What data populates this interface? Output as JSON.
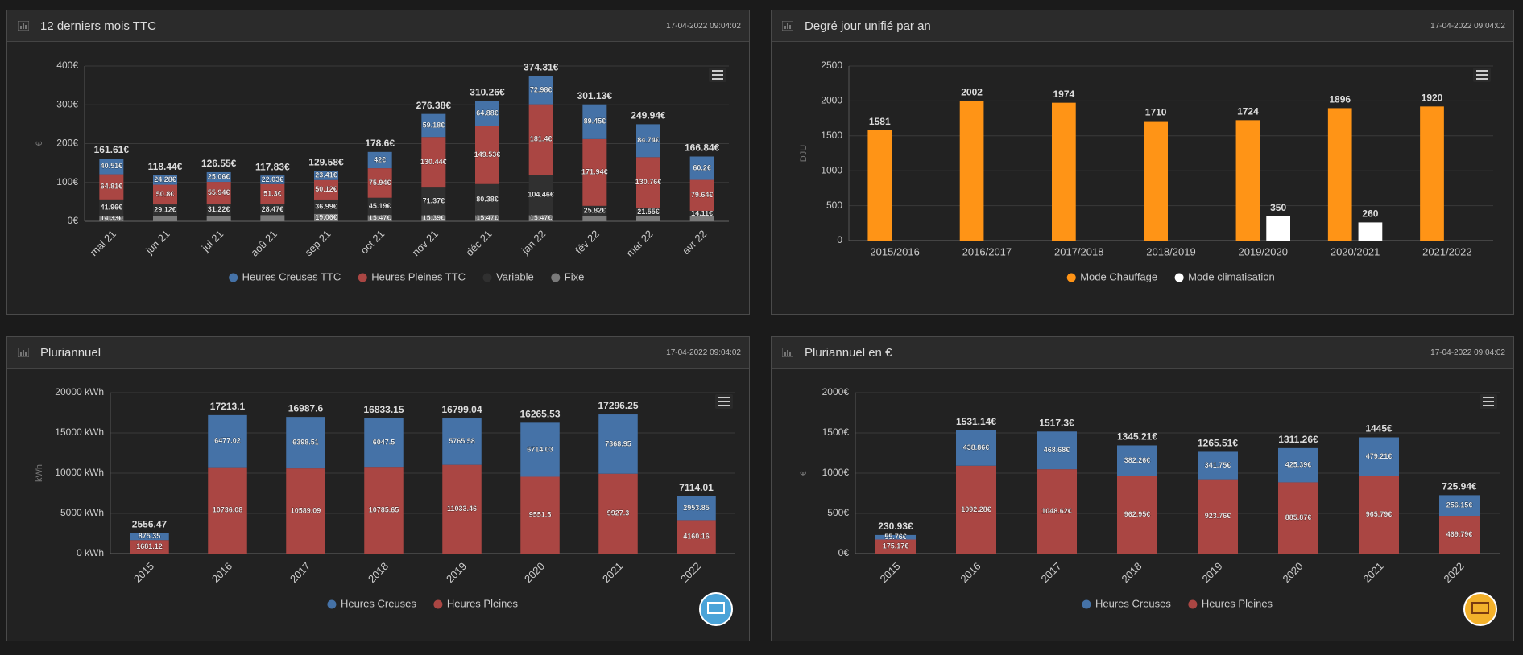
{
  "chart_data": [
    {
      "type": "stacked_bar",
      "title": "12 derniers mois TTC",
      "updated": "17-04-2022 09:04:02",
      "y_label": "€",
      "categories": [
        "mai 21",
        "jun 21",
        "jul 21",
        "aoû 21",
        "sep 21",
        "oct 21",
        "nov 21",
        "déc 21",
        "jan 22",
        "fév 22",
        "mar 22",
        "avr 22"
      ],
      "series": [
        {
          "name": "Heures Creuses TTC",
          "color": "#4572a7",
          "values": [
            40.51,
            24.28,
            25.06,
            22.03,
            23.41,
            42,
            59.18,
            64.88,
            72.98,
            89.45,
            84.74,
            60.2
          ],
          "value_labels": [
            "40.51€",
            "24.28€",
            "25.06€",
            "22.03€",
            "23.41€",
            "42€",
            "59.18€",
            "64.88€",
            "72.98€",
            "89.45€",
            "84.74€",
            "60.2€"
          ]
        },
        {
          "name": "Heures Pleines TTC",
          "color": "#aa4643",
          "values": [
            64.81,
            50.8,
            55.94,
            51.3,
            50.12,
            75.94,
            130.44,
            149.53,
            181.4,
            171.94,
            130.76,
            79.64
          ],
          "value_labels": [
            "64.81€",
            "50.8€",
            "55.94€",
            "51.3€",
            "50.12€",
            "75.94€",
            "130.44€",
            "149.53€",
            "181.4€",
            "171.94€",
            "130.76€",
            "79.64€"
          ]
        },
        {
          "name": "Variable",
          "color": "#303030",
          "values": [
            41.96,
            29.12,
            31.22,
            28.47,
            36.99,
            45.19,
            71.37,
            80.38,
            104.46,
            25.82,
            21.55,
            14.11
          ],
          "value_labels": [
            "41.96€",
            "29.12€",
            "31.22€",
            "28.47€",
            "36.99€",
            "45.19€",
            "71.37€",
            "80.38€",
            "104.46€",
            "25.82€",
            "21.55€",
            "14.11€"
          ]
        },
        {
          "name": "Fixe",
          "color": "#7a7a7a",
          "values": [
            14.33,
            14.24,
            14.33,
            16.03,
            19.06,
            15.47,
            15.39,
            15.47,
            15.47,
            13.92,
            12.89,
            12.89
          ],
          "value_labels": [
            "14.33€",
            null,
            null,
            null,
            "19.06€",
            "15.47€",
            "15.39€",
            "15.47€",
            "15.47€",
            null,
            null,
            null
          ]
        }
      ],
      "stack_labels": [
        "161.61€",
        "118.44€",
        "126.55€",
        "117.83€",
        "129.58€",
        "178.6€",
        "276.38€",
        "310.26€",
        "374.31€",
        "301.13€",
        "249.94€",
        "166.84€"
      ],
      "ylim": [
        0,
        400
      ],
      "yticks": [
        {
          "value": 0,
          "label": "0€"
        },
        {
          "value": 100,
          "label": "100€"
        },
        {
          "value": 200,
          "label": "200€"
        },
        {
          "value": 300,
          "label": "300€"
        },
        {
          "value": 400,
          "label": "400€"
        }
      ],
      "grid": true,
      "legend": "bottom"
    },
    {
      "type": "bar",
      "title": "Degré jour unifié par an",
      "updated": "17-04-2022 09:04:02",
      "y_label": "DJU",
      "categories": [
        "2015/2016",
        "2016/2017",
        "2017/2018",
        "2018/2019",
        "2019/2020",
        "2020/2021",
        "2021/2022"
      ],
      "series": [
        {
          "name": "Mode Chauffage",
          "color": "#ff9416",
          "values": [
            1581,
            2002,
            1974,
            1710,
            1724,
            1896,
            1920
          ]
        },
        {
          "name": "Mode climatisation",
          "color": "#ffffff",
          "values": [
            null,
            null,
            null,
            null,
            350,
            260,
            null
          ]
        }
      ],
      "ylim": [
        0,
        2500
      ],
      "yticks": [
        0,
        500,
        1000,
        1500,
        2000,
        2500
      ],
      "grid": true,
      "legend": "bottom"
    },
    {
      "type": "stacked_bar",
      "title": "Pluriannuel",
      "updated": "17-04-2022 09:04:02",
      "y_label": "kWh",
      "categories": [
        "2015",
        "2016",
        "2017",
        "2018",
        "2019",
        "2020",
        "2021",
        "2022"
      ],
      "series": [
        {
          "name": "Heures Creuses",
          "color": "#4572a7",
          "values": [
            875.35,
            6477.02,
            6398.51,
            6047.5,
            5765.58,
            6714.03,
            7368.95,
            2953.85
          ]
        },
        {
          "name": "Heures Pleines",
          "color": "#aa4643",
          "values": [
            1681.12,
            10736.08,
            10589.09,
            10785.65,
            11033.46,
            9551.5,
            9927.3,
            4160.16
          ]
        }
      ],
      "stack_labels": [
        "2556.47",
        "17213.1",
        "16987.6",
        "16833.15",
        "16799.04",
        "16265.53",
        "17296.25",
        "7114.01"
      ],
      "ylim": [
        0,
        20000
      ],
      "yticks": [
        {
          "value": 0,
          "label": "0 kWh"
        },
        {
          "value": 5000,
          "label": "5000 kWh"
        },
        {
          "value": 10000,
          "label": "10000 kWh"
        },
        {
          "value": 15000,
          "label": "15000 kWh"
        },
        {
          "value": 20000,
          "label": "20000 kWh"
        }
      ],
      "grid": true,
      "legend": "bottom"
    },
    {
      "type": "stacked_bar",
      "title": "Pluriannuel en €",
      "updated": "17-04-2022 09:04:02",
      "y_label": "€",
      "categories": [
        "2015",
        "2016",
        "2017",
        "2018",
        "2019",
        "2020",
        "2021",
        "2022"
      ],
      "series": [
        {
          "name": "Heures Creuses",
          "color": "#4572a7",
          "values": [
            55.76,
            438.86,
            468.68,
            382.26,
            341.75,
            425.39,
            479.21,
            256.15
          ],
          "value_labels": [
            "55.76€",
            "438.86€",
            "468.68€",
            "382.26€",
            "341.75€",
            "425.39€",
            "479.21€",
            "256.15€"
          ]
        },
        {
          "name": "Heures Pleines",
          "color": "#aa4643",
          "values": [
            175.17,
            1092.28,
            1048.62,
            962.95,
            923.76,
            885.87,
            965.79,
            469.79
          ],
          "value_labels": [
            "175.17€",
            "1092.28€",
            "1048.62€",
            "962.95€",
            "923.76€",
            "885.87€",
            "965.79€",
            "469.79€"
          ]
        }
      ],
      "stack_labels": [
        "230.93€",
        "1531.14€",
        "1517.3€",
        "1345.21€",
        "1265.51€",
        "1311.26€",
        "1445€",
        "725.94€"
      ],
      "ylim": [
        0,
        2000
      ],
      "yticks": [
        {
          "value": 0,
          "label": "0€"
        },
        {
          "value": 500,
          "label": "500€"
        },
        {
          "value": 1000,
          "label": "1000€"
        },
        {
          "value": 1500,
          "label": "1500€"
        },
        {
          "value": 2000,
          "label": "2000€"
        }
      ],
      "grid": true,
      "legend": "bottom"
    }
  ]
}
